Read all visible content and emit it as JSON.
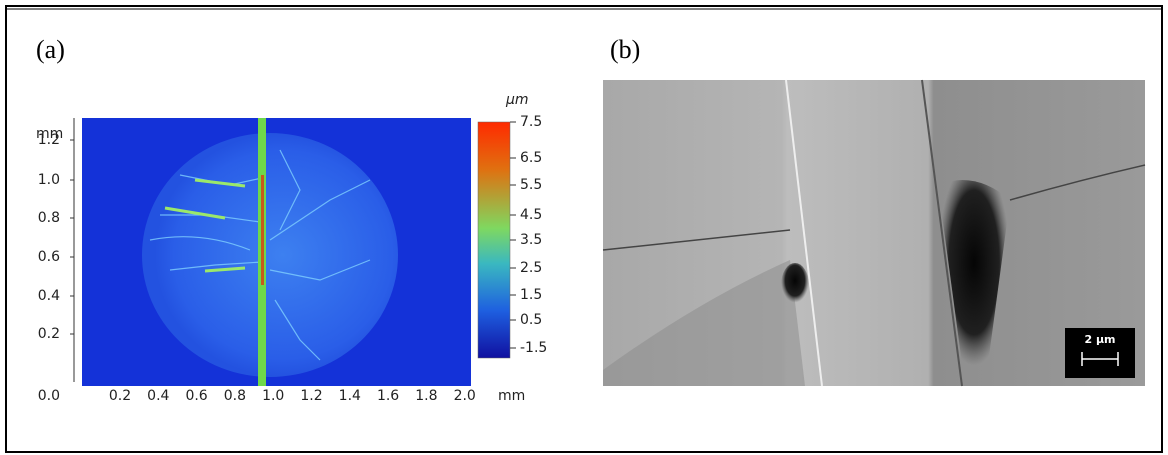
{
  "panels": [
    {
      "label": "(a)",
      "y_unit": "mm",
      "y_ticks": [
        "1.2",
        "1.0",
        "0.8",
        "0.6",
        "0.4",
        "0.2",
        "0.0"
      ],
      "x_ticks": [
        "0.2",
        "0.4",
        "0.6",
        "0.8",
        "1.0",
        "1.2",
        "1.4",
        "1.6",
        "1.8",
        "2.0"
      ],
      "x_unit": "mm",
      "colorbar_unit": "μm",
      "colorbar_ticks": [
        "7.5",
        "6.5",
        "5.5",
        "4.5",
        "3.5",
        "2.5",
        "1.5",
        "0.5",
        "-1.5"
      ]
    },
    {
      "label": "(b)",
      "scale_bar": "2 µm"
    }
  ]
}
